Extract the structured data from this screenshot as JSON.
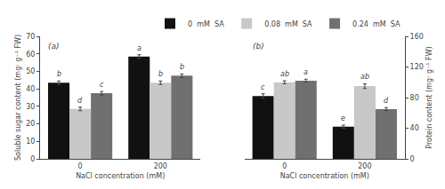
{
  "chart_data": [
    {
      "type": "bar",
      "categories": [
        "0",
        "200"
      ],
      "xlabel": "NaCl concentration (mM)",
      "ylabel": "Soluble sugar content (mg· g⁻¹ FW)",
      "ylim": [
        0,
        70
      ],
      "yticks": [
        0,
        10,
        20,
        30,
        40,
        50,
        60,
        70
      ],
      "grid": false,
      "annotations": [
        "(a)"
      ],
      "series": [
        {
          "color": "#111111",
          "values": [
            43.5,
            58.5
          ],
          "errors": [
            1.0,
            1.0
          ],
          "letters": [
            "b",
            "a"
          ]
        },
        {
          "color": "#c8c8c8",
          "values": [
            28.5,
            43.5
          ],
          "errors": [
            1.0,
            1.0
          ],
          "letters": [
            "d",
            "b"
          ]
        },
        {
          "color": "#707070",
          "values": [
            37.5,
            47.5
          ],
          "errors": [
            1.0,
            1.0
          ],
          "letters": [
            "c",
            "b"
          ]
        }
      ]
    },
    {
      "type": "bar",
      "categories": [
        "0",
        "200"
      ],
      "xlabel": "NaCl concentration (mM)",
      "ylabel": "Protein content (mg· g⁻¹ FW)",
      "ylim": [
        0,
        160
      ],
      "yticks": [
        0,
        40,
        80,
        120,
        160
      ],
      "grid": false,
      "legend": "upper right",
      "annotations": [
        "(b)"
      ],
      "series": [
        {
          "name": "0  mM  SA",
          "color": "#111111",
          "values": [
            82,
            42
          ],
          "errors": [
            3.0,
            2.0
          ],
          "letters": [
            "c",
            "e"
          ]
        },
        {
          "name": "0.08  mM  SA",
          "color": "#c8c8c8",
          "values": [
            100,
            95
          ],
          "errors": [
            2.0,
            3.0
          ],
          "letters": [
            "ab",
            "ab"
          ]
        },
        {
          "name": "0.24  mM  SA",
          "color": "#707070",
          "values": [
            102,
            65
          ],
          "errors": [
            2.0,
            2.0
          ],
          "letters": [
            "a",
            "d"
          ]
        }
      ]
    }
  ]
}
